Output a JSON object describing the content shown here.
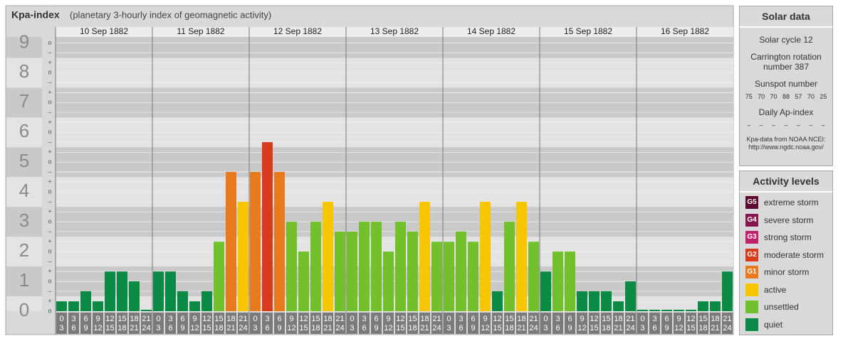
{
  "chart_data": {
    "type": "bar",
    "title": "Kpa-index",
    "subtitle": "(planetary 3-hourly index of geomagnetic activity)",
    "categories": [
      "10 Sep 1882",
      "11 Sep 1882",
      "12 Sep 1882",
      "13 Sep 1882",
      "14 Sep 1882",
      "15 Sep 1882",
      "16 Sep 1882"
    ],
    "slots": [
      [
        0,
        3
      ],
      [
        3,
        6
      ],
      [
        6,
        9
      ],
      [
        9,
        12
      ],
      [
        12,
        15
      ],
      [
        15,
        18
      ],
      [
        18,
        21
      ],
      [
        21,
        24
      ]
    ],
    "values": [
      [
        0.33,
        0.33,
        0.67,
        0.33,
        1.33,
        1.33,
        1,
        0
      ],
      [
        1.33,
        1.33,
        0.67,
        0.33,
        0.67,
        2.33,
        4.67,
        3.67
      ],
      [
        4.67,
        5.67,
        4.67,
        3,
        2,
        3,
        3.67,
        2.67
      ],
      [
        2.67,
        3,
        3,
        2,
        3,
        2.67,
        3.67,
        2.33
      ],
      [
        2.33,
        2.67,
        2.33,
        3.67,
        0.67,
        3,
        3.67,
        2.33
      ],
      [
        1.33,
        2,
        2,
        0.67,
        0.67,
        0.67,
        0.33,
        1
      ],
      [
        0,
        0,
        0,
        0,
        0,
        0.33,
        0.33,
        1.33
      ]
    ],
    "colors": [
      [
        "#0b8a45",
        "#0b8a45",
        "#0b8a45",
        "#0b8a45",
        "#0b8a45",
        "#0b8a45",
        "#0b8a45",
        "#0b8a45"
      ],
      [
        "#0b8a45",
        "#0b8a45",
        "#0b8a45",
        "#0b8a45",
        "#0b8a45",
        "#72c02c",
        "#e8791c",
        "#f7c600"
      ],
      [
        "#e8791c",
        "#d93b1e",
        "#e8791c",
        "#72c02c",
        "#72c02c",
        "#72c02c",
        "#f7c600",
        "#72c02c"
      ],
      [
        "#72c02c",
        "#72c02c",
        "#72c02c",
        "#72c02c",
        "#72c02c",
        "#72c02c",
        "#f7c600",
        "#72c02c"
      ],
      [
        "#72c02c",
        "#72c02c",
        "#72c02c",
        "#f7c600",
        "#0b8a45",
        "#72c02c",
        "#f7c600",
        "#72c02c"
      ],
      [
        "#0b8a45",
        "#72c02c",
        "#72c02c",
        "#0b8a45",
        "#0b8a45",
        "#0b8a45",
        "#0b8a45",
        "#0b8a45"
      ],
      [
        "#0b8a45",
        "#0b8a45",
        "#0b8a45",
        "#0b8a45",
        "#0b8a45",
        "#0b8a45",
        "#0b8a45",
        "#0b8a45"
      ]
    ],
    "ylim": [
      0,
      9.2
    ],
    "yticks": [
      0,
      1,
      2,
      3,
      4,
      5,
      6,
      7,
      8,
      9
    ],
    "yminorticks": [
      {
        "value": 0,
        "label": "o"
      },
      {
        "value": 0.33,
        "label": "+"
      },
      {
        "value": 0.67,
        "label": "–"
      },
      {
        "value": 1,
        "label": "o"
      },
      {
        "value": 1.33,
        "label": "+"
      },
      {
        "value": 1.67,
        "label": "–"
      },
      {
        "value": 2,
        "label": "o"
      },
      {
        "value": 2.33,
        "label": "+"
      },
      {
        "value": 2.67,
        "label": "–"
      },
      {
        "value": 3,
        "label": "o"
      },
      {
        "value": 3.33,
        "label": "+"
      },
      {
        "value": 3.67,
        "label": "–"
      },
      {
        "value": 4,
        "label": "o"
      },
      {
        "value": 4.33,
        "label": "+"
      },
      {
        "value": 4.67,
        "label": "–"
      },
      {
        "value": 5,
        "label": "o"
      },
      {
        "value": 5.33,
        "label": "+"
      },
      {
        "value": 5.67,
        "label": "–"
      },
      {
        "value": 6,
        "label": "o"
      },
      {
        "value": 6.33,
        "label": "+"
      },
      {
        "value": 6.67,
        "label": "–"
      },
      {
        "value": 7,
        "label": "o"
      },
      {
        "value": 7.33,
        "label": "+"
      },
      {
        "value": 7.67,
        "label": "–"
      },
      {
        "value": 8,
        "label": "o"
      },
      {
        "value": 8.33,
        "label": "+"
      },
      {
        "value": 8.67,
        "label": "–"
      },
      {
        "value": 9,
        "label": "o"
      }
    ],
    "grid": true
  },
  "solar_data": {
    "title": "Solar data",
    "solar_cycle": "Solar cycle 12",
    "carrington": "Carrington rotation number 387",
    "sunspot_title": "Sunspot number",
    "sunspot_numbers": [
      75,
      70,
      70,
      88,
      57,
      70,
      25
    ],
    "ap_title": "Daily Ap-index",
    "ap_values": [
      "–",
      "–",
      "–",
      "–",
      "–",
      "–",
      "–"
    ],
    "source": "Kpa-data from NOAA NCEI:",
    "source_url": "http://www.ngdc.noaa.gov/"
  },
  "activity_levels": {
    "title": "Activity levels",
    "items": [
      {
        "badge": "G5",
        "label": "extreme storm",
        "color": "#5a0a2c"
      },
      {
        "badge": "G4",
        "label": "severe storm",
        "color": "#86184c"
      },
      {
        "badge": "G3",
        "label": "strong storm",
        "color": "#c0216c"
      },
      {
        "badge": "G2",
        "label": "moderate storm",
        "color": "#d93b1e"
      },
      {
        "badge": "G1",
        "label": "minor storm",
        "color": "#e8791c"
      },
      {
        "label": "active",
        "color": "#f7c600"
      },
      {
        "label": "unsettled",
        "color": "#72c02c"
      },
      {
        "label": "quiet",
        "color": "#0b8a45"
      }
    ]
  }
}
